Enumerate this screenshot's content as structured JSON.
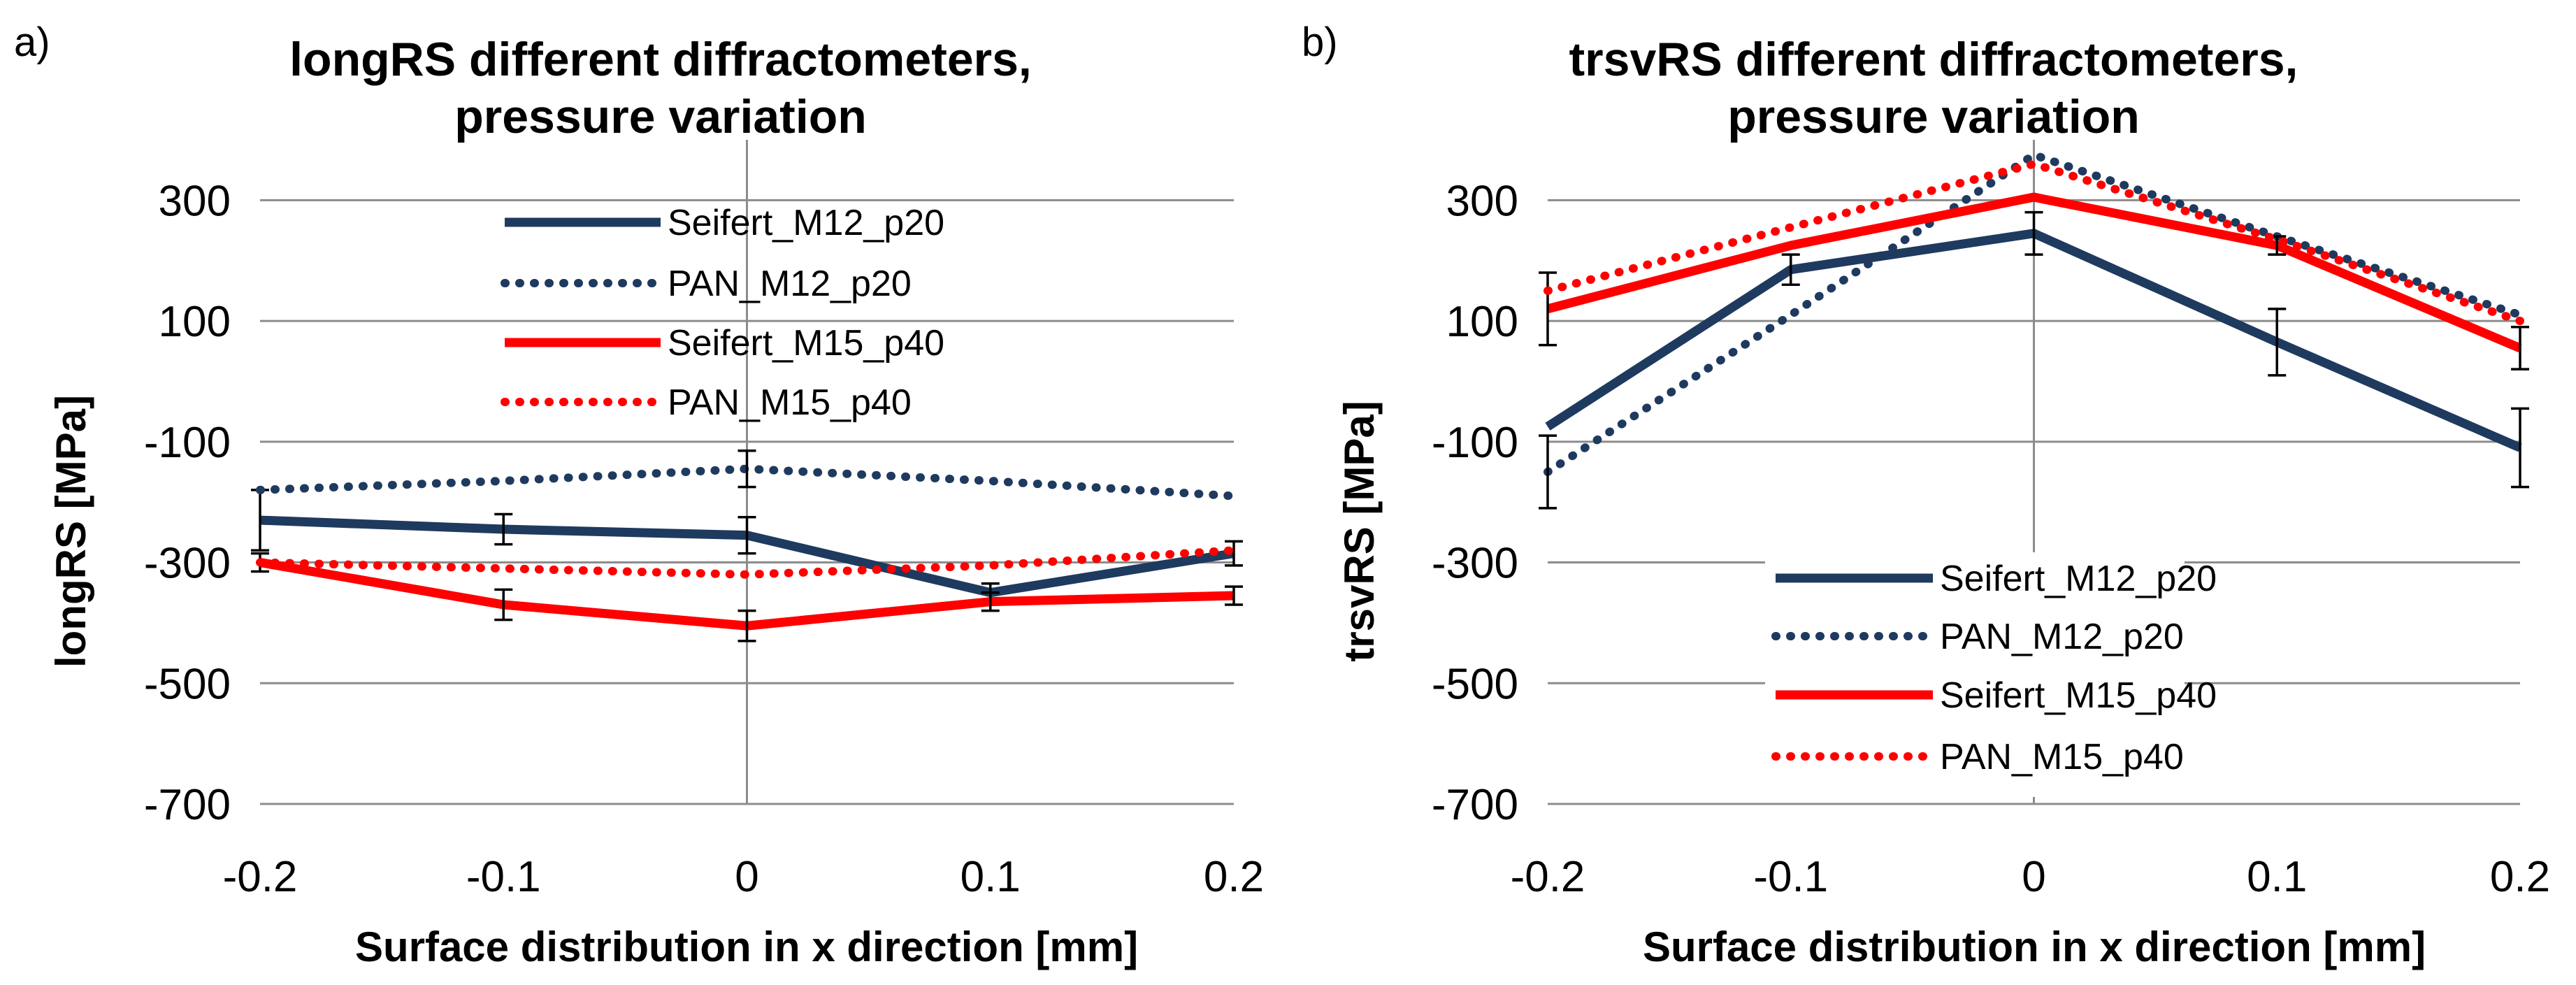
{
  "colors": {
    "navy": "#1f3a5f",
    "red": "#ff0000",
    "grid": "#8c8c8c"
  },
  "chart_data": [
    {
      "type": "line",
      "panel_label": "a)",
      "title": [
        "longRS different diffractometers,",
        "pressure variation"
      ],
      "xlabel": "Surface distribution  in x direction [mm]",
      "ylabel": "longRS [MPa]",
      "x": [
        -0.2,
        -0.1,
        0,
        0.1,
        0.2
      ],
      "x_tick_labels": [
        "-0.2",
        "-0.1",
        "0",
        "0.1",
        "0.2"
      ],
      "ylim": [
        -700,
        400
      ],
      "y_ticks": [
        300,
        100,
        -100,
        -300,
        -500,
        -700
      ],
      "grid": true,
      "legend_position": "top-right",
      "series": [
        {
          "name": "Seifert_M12_p20",
          "color": "#1f3a5f",
          "style": "solid",
          "values": [
            -230,
            -245,
            -255,
            -350,
            -285
          ],
          "errors": [
            50,
            25,
            30,
            15,
            20
          ]
        },
        {
          "name": "PAN_M12_p20",
          "color": "#1f3a5f",
          "style": "dotted",
          "values": [
            -180,
            -165,
            -145,
            -165,
            -190
          ],
          "errors": [
            0,
            0,
            30,
            0,
            0
          ]
        },
        {
          "name": "Seifert_M15_p40",
          "color": "#ff0000",
          "style": "solid",
          "values": [
            -300,
            -370,
            -405,
            -365,
            -355
          ],
          "errors": [
            15,
            25,
            25,
            15,
            15
          ]
        },
        {
          "name": "PAN_M15_p40",
          "color": "#ff0000",
          "style": "dotted",
          "values": [
            -300,
            -310,
            -320,
            -305,
            -280
          ],
          "errors": [
            0,
            0,
            0,
            0,
            0
          ]
        }
      ]
    },
    {
      "type": "line",
      "panel_label": "b)",
      "title": [
        "trsvRS different diffractometers,",
        "pressure variation"
      ],
      "xlabel": "Surface distribution  in x direction [mm]",
      "ylabel": "trsvRS [MPa]",
      "x": [
        -0.2,
        -0.1,
        0,
        0.1,
        0.2
      ],
      "x_tick_labels": [
        "-0.2",
        "-0.1",
        "0",
        "0.1",
        "0.2"
      ],
      "ylim": [
        -700,
        400
      ],
      "y_ticks": [
        300,
        100,
        -100,
        -300,
        -500,
        -700
      ],
      "grid": true,
      "legend_position": "bottom-center",
      "series": [
        {
          "name": "Seifert_M12_p20",
          "color": "#1f3a5f",
          "style": "solid",
          "values": [
            -75,
            185,
            245,
            65,
            -110
          ],
          "errors": [
            0,
            25,
            35,
            55,
            65
          ]
        },
        {
          "name": "PAN_M12_p20",
          "color": "#1f3a5f",
          "style": "dotted",
          "values": [
            -150,
            110,
            375,
            240,
            110
          ],
          "errors": [
            60,
            0,
            0,
            0,
            0
          ]
        },
        {
          "name": "Seifert_M15_p40",
          "color": "#ff0000",
          "style": "solid",
          "values": [
            120,
            225,
            305,
            225,
            55
          ],
          "errors": [
            60,
            0,
            0,
            15,
            35
          ]
        },
        {
          "name": "PAN_M15_p40",
          "color": "#ff0000",
          "style": "dotted",
          "values": [
            150,
            255,
            360,
            235,
            100
          ],
          "errors": [
            0,
            0,
            0,
            0,
            0
          ]
        }
      ]
    }
  ]
}
